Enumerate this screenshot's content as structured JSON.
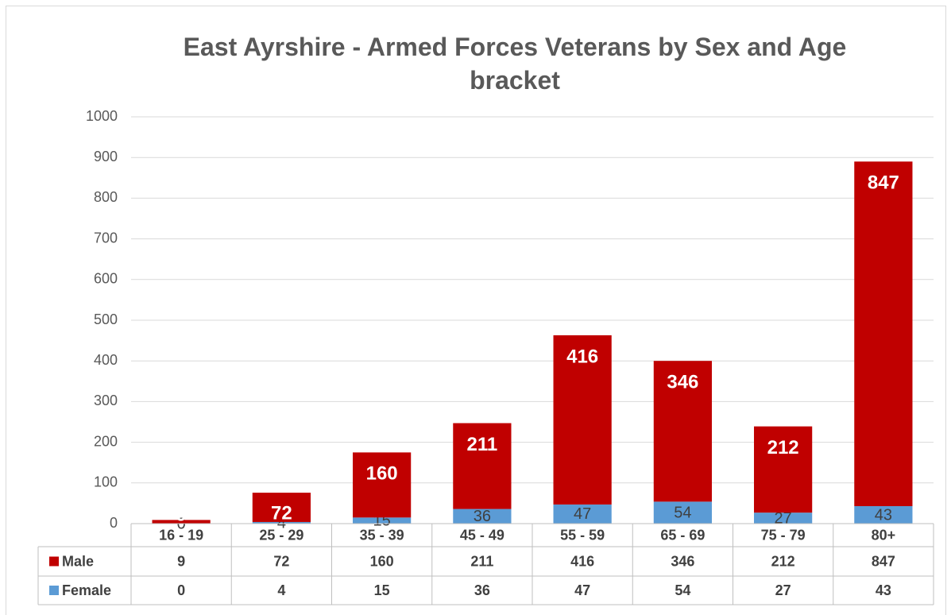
{
  "chart_data": {
    "type": "bar",
    "stacked": true,
    "title": "East Ayrshire - Armed Forces Veterans by Sex and Age bracket",
    "categories": [
      "16 - 19",
      "25 - 29",
      "35 - 39",
      "45 - 49",
      "55 - 59",
      "65 - 69",
      "75 - 79",
      "80+"
    ],
    "series": [
      {
        "name": "Male",
        "color": "#c00000",
        "values": [
          9,
          72,
          160,
          211,
          416,
          346,
          212,
          847
        ]
      },
      {
        "name": "Female",
        "color": "#5b9bd5",
        "values": [
          0,
          4,
          15,
          36,
          47,
          54,
          27,
          43
        ]
      }
    ],
    "ylim": [
      0,
      1000
    ],
    "yticks": [
      0,
      100,
      200,
      300,
      400,
      500,
      600,
      700,
      800,
      900,
      1000
    ],
    "grid": true,
    "data_table": true
  }
}
